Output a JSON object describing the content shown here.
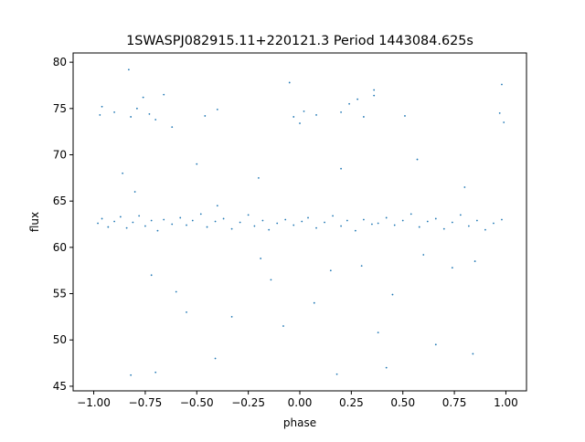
{
  "chart_data": {
    "type": "scatter",
    "title": "1SWASPJ082915.11+220121.3 Period 1443084.625s",
    "xlabel": "phase",
    "ylabel": "flux",
    "xlim": [
      -1.1,
      1.1
    ],
    "ylim": [
      44.5,
      81
    ],
    "xticks": [
      -1.0,
      -0.75,
      -0.5,
      -0.25,
      0.0,
      0.25,
      0.5,
      0.75,
      1.0
    ],
    "xtick_labels": [
      "−1.00",
      "−0.75",
      "−0.50",
      "−0.25",
      "0.00",
      "0.25",
      "0.50",
      "0.75",
      "1.00"
    ],
    "yticks": [
      45,
      50,
      55,
      60,
      65,
      70,
      75,
      80
    ],
    "ytick_labels": [
      "45",
      "50",
      "55",
      "60",
      "65",
      "70",
      "75",
      "80"
    ],
    "grid": false,
    "marker_color": "#1f77b4",
    "series": [
      {
        "name": "",
        "description_x_range": [
          -1.0,
          1.0
        ],
        "points": [
          [
            -0.98,
            62.6
          ],
          [
            -0.96,
            63.1
          ],
          [
            -0.93,
            62.2
          ],
          [
            -0.9,
            62.8
          ],
          [
            -0.87,
            63.3
          ],
          [
            -0.84,
            62.1
          ],
          [
            -0.81,
            62.7
          ],
          [
            -0.78,
            63.4
          ],
          [
            -0.75,
            62.3
          ],
          [
            -0.72,
            62.9
          ],
          [
            -0.69,
            61.8
          ],
          [
            -0.66,
            63.0
          ],
          [
            -0.62,
            62.5
          ],
          [
            -0.58,
            63.2
          ],
          [
            -0.55,
            62.4
          ],
          [
            -0.52,
            62.9
          ],
          [
            -0.48,
            63.6
          ],
          [
            -0.45,
            62.2
          ],
          [
            -0.41,
            62.8
          ],
          [
            -0.37,
            63.1
          ],
          [
            -0.33,
            62.0
          ],
          [
            -0.29,
            62.7
          ],
          [
            -0.25,
            63.5
          ],
          [
            -0.22,
            62.3
          ],
          [
            -0.18,
            62.9
          ],
          [
            -0.15,
            61.9
          ],
          [
            -0.11,
            62.6
          ],
          [
            -0.07,
            63.0
          ],
          [
            -0.03,
            62.4
          ],
          [
            0.01,
            62.8
          ],
          [
            0.04,
            63.2
          ],
          [
            0.08,
            62.1
          ],
          [
            0.12,
            62.7
          ],
          [
            0.16,
            63.4
          ],
          [
            0.2,
            62.3
          ],
          [
            0.23,
            62.9
          ],
          [
            0.27,
            61.8
          ],
          [
            0.31,
            63.0
          ],
          [
            0.35,
            62.5
          ],
          [
            0.38,
            62.6
          ],
          [
            0.42,
            63.2
          ],
          [
            0.46,
            62.4
          ],
          [
            0.5,
            62.9
          ],
          [
            0.54,
            63.6
          ],
          [
            0.58,
            62.2
          ],
          [
            0.62,
            62.8
          ],
          [
            0.66,
            63.1
          ],
          [
            0.7,
            62.0
          ],
          [
            0.74,
            62.7
          ],
          [
            0.78,
            63.5
          ],
          [
            0.82,
            62.3
          ],
          [
            0.86,
            62.9
          ],
          [
            0.9,
            61.9
          ],
          [
            0.94,
            62.6
          ],
          [
            0.98,
            63.0
          ],
          [
            -0.97,
            74.3
          ],
          [
            -0.96,
            75.2
          ],
          [
            -0.9,
            74.6
          ],
          [
            -0.82,
            74.1
          ],
          [
            -0.79,
            75.0
          ],
          [
            -0.76,
            76.2
          ],
          [
            -0.73,
            74.4
          ],
          [
            -0.7,
            73.8
          ],
          [
            -0.66,
            76.5
          ],
          [
            -0.62,
            73.0
          ],
          [
            -0.46,
            74.2
          ],
          [
            -0.4,
            74.9
          ],
          [
            -0.03,
            74.1
          ],
          [
            0.0,
            73.4
          ],
          [
            0.02,
            74.7
          ],
          [
            0.08,
            74.3
          ],
          [
            0.2,
            74.6
          ],
          [
            0.24,
            75.5
          ],
          [
            0.28,
            76.0
          ],
          [
            0.31,
            74.1
          ],
          [
            0.36,
            76.4
          ],
          [
            0.51,
            74.2
          ],
          [
            0.97,
            74.5
          ],
          [
            0.99,
            73.5
          ],
          [
            -0.05,
            77.8
          ],
          [
            0.98,
            77.6
          ],
          [
            -0.83,
            79.2
          ],
          [
            0.36,
            77.0
          ],
          [
            -0.8,
            66.0
          ],
          [
            -0.72,
            57.0
          ],
          [
            -0.6,
            55.2
          ],
          [
            -0.4,
            64.5
          ],
          [
            -0.19,
            58.8
          ],
          [
            -0.14,
            56.5
          ],
          [
            0.15,
            57.5
          ],
          [
            0.3,
            58.0
          ],
          [
            0.45,
            54.9
          ],
          [
            0.6,
            59.2
          ],
          [
            0.74,
            57.8
          ],
          [
            0.85,
            58.5
          ],
          [
            -0.86,
            68.0
          ],
          [
            -0.5,
            69.0
          ],
          [
            -0.2,
            67.5
          ],
          [
            0.2,
            68.5
          ],
          [
            0.57,
            69.5
          ],
          [
            0.8,
            66.5
          ],
          [
            -0.82,
            46.2
          ],
          [
            -0.7,
            46.5
          ],
          [
            -0.41,
            48.0
          ],
          [
            0.18,
            46.3
          ],
          [
            0.42,
            47.0
          ],
          [
            0.84,
            48.5
          ],
          [
            -0.08,
            51.5
          ],
          [
            -0.33,
            52.5
          ],
          [
            0.38,
            50.8
          ],
          [
            0.66,
            49.5
          ],
          [
            -0.55,
            53.0
          ],
          [
            0.07,
            54.0
          ]
        ]
      }
    ]
  }
}
